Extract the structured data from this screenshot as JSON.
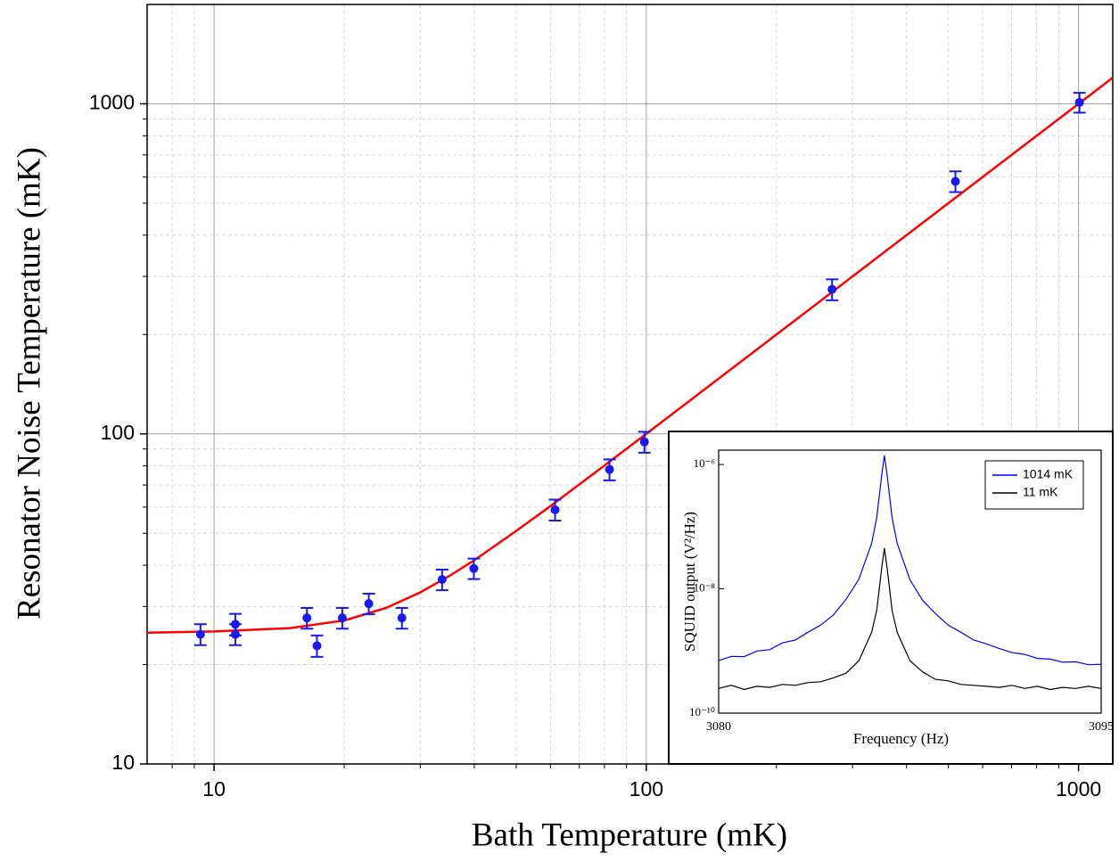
{
  "chart_data": [
    {
      "type": "scatter",
      "x_label": "Bath Temperature (mK)",
      "y_label": "Resonator Noise Temperature (mK)",
      "xscale": "log",
      "yscale": "log",
      "xlim": [
        7,
        1200
      ],
      "ylim": [
        10,
        2000
      ],
      "xticks": [
        10,
        100,
        1000
      ],
      "yticks": [
        10,
        100,
        1000
      ],
      "xminor": [
        8,
        9,
        20,
        30,
        40,
        50,
        60,
        70,
        80,
        90,
        200,
        300,
        400,
        500,
        600,
        700,
        800,
        900
      ],
      "yminor": [
        20,
        30,
        40,
        50,
        60,
        70,
        80,
        90,
        200,
        300,
        400,
        500,
        600,
        700,
        800,
        900
      ],
      "grid": true,
      "color": "#1a1aee",
      "x": [
        9.3,
        11.2,
        11.2,
        16.4,
        17.3,
        19.8,
        22.8,
        27.2,
        33.7,
        39.9,
        61.5,
        82.2,
        99,
        269,
        519,
        1005
      ],
      "values": [
        24.7,
        26.5,
        24.7,
        27.7,
        22.8,
        27.7,
        30.6,
        27.7,
        36.2,
        39.1,
        58.9,
        78.0,
        94.6,
        274,
        582,
        1010
      ],
      "errors": [
        1.8,
        2.0,
        1.8,
        2.0,
        1.7,
        2.0,
        2.2,
        2.0,
        2.6,
        2.8,
        4.3,
        5.7,
        6.9,
        20,
        42,
        70
      ],
      "fit": {
        "color": "#ff0000",
        "x": [
          7,
          10,
          15,
          20,
          25,
          30,
          35,
          40,
          50,
          60,
          80,
          100,
          200,
          500,
          1000,
          1200
        ],
        "values": [
          25.0,
          25.2,
          25.8,
          27.2,
          29.7,
          33.1,
          37.1,
          41.4,
          50.8,
          60.4,
          80.2,
          100.1,
          200,
          500,
          1000,
          1200
        ]
      }
    },
    {
      "type": "line",
      "x_label": "Frequency (Hz)",
      "y_label": "SQUID output  (V²/Hz)",
      "yscale": "log",
      "xlim": [
        3080,
        3095
      ],
      "ylim": [
        1e-10,
        1.7e-06
      ],
      "xticks": [
        3080,
        3095
      ],
      "yticks": [
        {
          "value": 1e-10,
          "label": "10⁻¹⁰"
        },
        {
          "value": 1e-08,
          "label": "10⁻⁸"
        },
        {
          "value": 1e-06,
          "label": "10⁻⁶"
        }
      ],
      "legend": "upper right",
      "x": [
        3080,
        3080.5,
        3081,
        3081.5,
        3082,
        3082.5,
        3083,
        3083.5,
        3084,
        3084.5,
        3085,
        3085.5,
        3086,
        3086.2,
        3086.4,
        3086.5,
        3086.6,
        3086.8,
        3087,
        3087.5,
        3088,
        3088.5,
        3089,
        3089.5,
        3090,
        3090.5,
        3091,
        3091.5,
        3092,
        3092.5,
        3093,
        3093.5,
        3094,
        3094.5,
        3095
      ],
      "series": [
        {
          "name": "1014 mK",
          "color": "#0000ff",
          "values": [
            7e-10,
            8.2e-10,
            8.1e-10,
            1e-09,
            1.05e-09,
            1.35e-09,
            1.5e-09,
            2e-09,
            2.6e-09,
            3.8e-09,
            6.8e-09,
            1.43e-08,
            5.4e-08,
            1.4e-07,
            7e-07,
            1.4e-06,
            7e-07,
            1.4e-07,
            5.4e-08,
            1.4e-08,
            6.5e-09,
            4e-09,
            2.6e-09,
            2e-09,
            1.5e-09,
            1.3e-09,
            1.1e-09,
            9.4e-10,
            8.8e-10,
            7.6e-10,
            7.4e-10,
            6.6e-10,
            6.7e-10,
            6e-10,
            6.1e-10
          ]
        },
        {
          "name": "11 mK",
          "color": "#000000",
          "values": [
            2.5e-10,
            2.8e-10,
            2.4e-10,
            2.7e-10,
            2.6e-10,
            2.9e-10,
            2.8e-10,
            3.1e-10,
            3.2e-10,
            3.7e-10,
            4.4e-10,
            7e-10,
            2e-09,
            4.5e-09,
            2.25e-08,
            4.5e-08,
            2.25e-08,
            4.5e-09,
            2e-09,
            7e-10,
            4.6e-10,
            3.5e-10,
            3.3e-10,
            2.9e-10,
            2.8e-10,
            2.7e-10,
            2.6e-10,
            2.8e-10,
            2.5e-10,
            2.7e-10,
            2.4e-10,
            2.6e-10,
            2.5e-10,
            2.7e-10,
            2.5e-10
          ]
        }
      ]
    }
  ]
}
